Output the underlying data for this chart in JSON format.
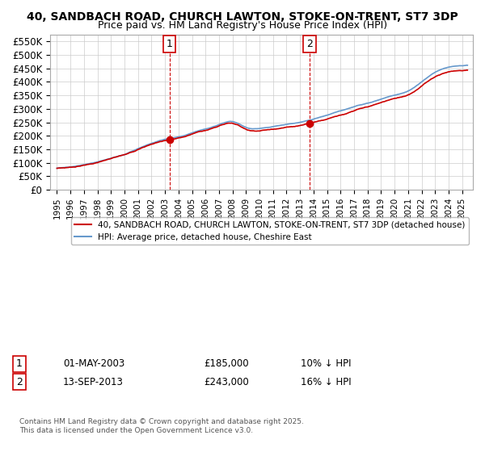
{
  "title": "40, SANDBACH ROAD, CHURCH LAWTON, STOKE-ON-TRENT, ST7 3DP",
  "subtitle": "Price paid vs. HM Land Registry's House Price Index (HPI)",
  "ylabel_ticks": [
    "£0",
    "£50K",
    "£100K",
    "£150K",
    "£200K",
    "£250K",
    "£300K",
    "£350K",
    "£400K",
    "£450K",
    "£500K",
    "£550K"
  ],
  "ytick_values": [
    0,
    50000,
    100000,
    150000,
    200000,
    250000,
    300000,
    350000,
    400000,
    450000,
    500000,
    550000
  ],
  "ylim": [
    0,
    575000
  ],
  "legend_line1": "40, SANDBACH ROAD, CHURCH LAWTON, STOKE-ON-TRENT, ST7 3DP (detached house)",
  "legend_line2": "HPI: Average price, detached house, Cheshire East",
  "sale1_date": "01-MAY-2003",
  "sale1_price": "£185,000",
  "sale1_pct": "10% ↓ HPI",
  "sale2_date": "13-SEP-2013",
  "sale2_price": "£243,000",
  "sale2_pct": "16% ↓ HPI",
  "footer": "Contains HM Land Registry data © Crown copyright and database right 2025.\nThis data is licensed under the Open Government Licence v3.0.",
  "color_house": "#cc0000",
  "color_hpi": "#6699cc",
  "color_vline": "#cc0000",
  "background_color": "#ffffff",
  "grid_color": "#cccccc"
}
